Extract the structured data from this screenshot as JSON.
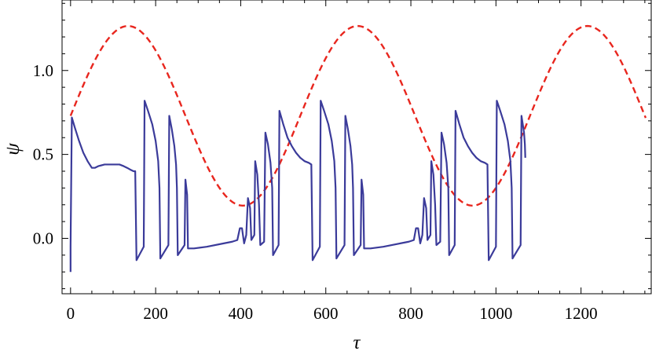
{
  "chart_data": {
    "type": "line",
    "title": "",
    "xlabel": "τ",
    "ylabel": "ψ",
    "xlim": [
      -20,
      1365
    ],
    "ylim": [
      -0.33,
      1.42
    ],
    "grid": false,
    "legend": "none",
    "x_ticks": [
      0,
      200,
      400,
      600,
      800,
      1000,
      1200
    ],
    "x_tick_labels": [
      "0",
      "200",
      "400",
      "600",
      "800",
      "1000",
      "1200"
    ],
    "y_ticks": [
      0.0,
      0.5,
      1.0
    ],
    "y_tick_labels": [
      "0.0",
      "0.5",
      "1.0"
    ],
    "series": [
      {
        "style": "solid",
        "color": "#3b3b9a",
        "points": [
          [
            0,
            -0.2
          ],
          [
            0,
            -0.05
          ],
          [
            3,
            0.72
          ],
          [
            10,
            0.66
          ],
          [
            20,
            0.58
          ],
          [
            30,
            0.51
          ],
          [
            40,
            0.46
          ],
          [
            50,
            0.42
          ],
          [
            57,
            0.42
          ],
          [
            65,
            0.43
          ],
          [
            80,
            0.44
          ],
          [
            100,
            0.44
          ],
          [
            115,
            0.44
          ],
          [
            125,
            0.43
          ],
          [
            133,
            0.42
          ],
          [
            140,
            0.41
          ],
          [
            148,
            0.4
          ],
          [
            152,
            0.4
          ],
          [
            155,
            -0.13
          ],
          [
            172,
            -0.05
          ],
          [
            174,
            0.82
          ],
          [
            182,
            0.76
          ],
          [
            192,
            0.68
          ],
          [
            200,
            0.58
          ],
          [
            206,
            0.46
          ],
          [
            209,
            0.3
          ],
          [
            211,
            -0.12
          ],
          [
            230,
            -0.04
          ],
          [
            232,
            0.73
          ],
          [
            238,
            0.65
          ],
          [
            244,
            0.55
          ],
          [
            248,
            0.44
          ],
          [
            250,
            0.3
          ],
          [
            252,
            -0.1
          ],
          [
            268,
            -0.04
          ],
          [
            270,
            0.35
          ],
          [
            274,
            0.26
          ],
          [
            276,
            -0.06
          ],
          [
            290,
            -0.06
          ],
          [
            320,
            -0.05
          ],
          [
            360,
            -0.03
          ],
          [
            380,
            -0.02
          ],
          [
            392,
            -0.01
          ],
          [
            398,
            0.06
          ],
          [
            403,
            0.06
          ],
          [
            408,
            -0.03
          ],
          [
            413,
            0.02
          ],
          [
            417,
            0.24
          ],
          [
            422,
            0.18
          ],
          [
            425,
            -0.01
          ],
          [
            432,
            0.02
          ],
          [
            434,
            0.46
          ],
          [
            439,
            0.38
          ],
          [
            443,
            0.2
          ],
          [
            446,
            -0.04
          ],
          [
            455,
            -0.02
          ],
          [
            458,
            0.63
          ],
          [
            464,
            0.56
          ],
          [
            470,
            0.45
          ],
          [
            474,
            0.3
          ],
          [
            476,
            -0.1
          ],
          [
            489,
            -0.04
          ],
          [
            491,
            0.76
          ],
          [
            500,
            0.68
          ],
          [
            510,
            0.6
          ],
          [
            520,
            0.55
          ],
          [
            530,
            0.51
          ],
          [
            540,
            0.48
          ],
          [
            550,
            0.46
          ],
          [
            560,
            0.45
          ],
          [
            566,
            0.44
          ],
          [
            569,
            -0.13
          ],
          [
            586,
            -0.05
          ],
          [
            588,
            0.82
          ],
          [
            596,
            0.76
          ],
          [
            606,
            0.68
          ],
          [
            614,
            0.58
          ],
          [
            620,
            0.46
          ],
          [
            623,
            0.3
          ],
          [
            625,
            -0.12
          ],
          [
            644,
            -0.04
          ],
          [
            646,
            0.73
          ],
          [
            652,
            0.65
          ],
          [
            658,
            0.55
          ],
          [
            662,
            0.44
          ],
          [
            664,
            0.3
          ],
          [
            666,
            -0.1
          ],
          [
            682,
            -0.04
          ],
          [
            684,
            0.35
          ],
          [
            688,
            0.26
          ],
          [
            690,
            -0.06
          ],
          [
            705,
            -0.06
          ],
          [
            735,
            -0.05
          ],
          [
            775,
            -0.03
          ],
          [
            795,
            -0.02
          ],
          [
            807,
            -0.01
          ],
          [
            812,
            0.06
          ],
          [
            817,
            0.06
          ],
          [
            822,
            -0.03
          ],
          [
            827,
            0.02
          ],
          [
            831,
            0.24
          ],
          [
            836,
            0.18
          ],
          [
            839,
            -0.01
          ],
          [
            846,
            0.02
          ],
          [
            848,
            0.46
          ],
          [
            853,
            0.38
          ],
          [
            857,
            0.2
          ],
          [
            860,
            -0.04
          ],
          [
            869,
            -0.02
          ],
          [
            872,
            0.63
          ],
          [
            878,
            0.56
          ],
          [
            884,
            0.45
          ],
          [
            888,
            0.3
          ],
          [
            890,
            -0.1
          ],
          [
            903,
            -0.04
          ],
          [
            905,
            0.76
          ],
          [
            914,
            0.68
          ],
          [
            924,
            0.6
          ],
          [
            934,
            0.55
          ],
          [
            944,
            0.51
          ],
          [
            954,
            0.48
          ],
          [
            964,
            0.46
          ],
          [
            974,
            0.45
          ],
          [
            980,
            0.44
          ],
          [
            983,
            -0.13
          ],
          [
            1000,
            -0.05
          ],
          [
            1002,
            0.82
          ],
          [
            1010,
            0.76
          ],
          [
            1020,
            0.68
          ],
          [
            1028,
            0.58
          ],
          [
            1034,
            0.46
          ],
          [
            1037,
            0.3
          ],
          [
            1039,
            -0.12
          ],
          [
            1058,
            -0.04
          ],
          [
            1060,
            0.73
          ],
          [
            1066,
            0.63
          ],
          [
            1068,
            0.56
          ],
          [
            1069,
            0.48
          ]
        ]
      },
      {
        "style": "dashed",
        "color": "#e8261e",
        "function": "0.73 + 0.535*sin(2*pi*(tau + 0)/540)",
        "x_range": [
          0,
          1352
        ],
        "peaks_at": [
          135,
          675,
          1215
        ],
        "peak_value": 1.265,
        "trough_value": 0.195
      }
    ]
  }
}
